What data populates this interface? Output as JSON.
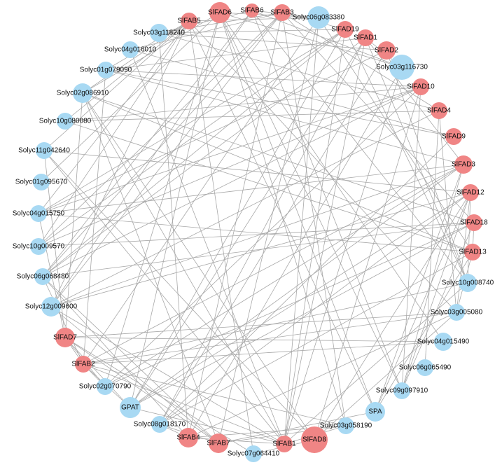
{
  "nodes": [
    {
      "label": "SlFAB5"
    },
    {
      "label": "SlFAD6"
    },
    {
      "label": "SlFAB6"
    },
    {
      "label": "SlFAB3"
    },
    {
      "label": "Solyc06g083380"
    },
    {
      "label": "SlFAD19"
    },
    {
      "label": "SlFAD1"
    },
    {
      "label": "SlFAD2"
    },
    {
      "label": "Solyc03g116730"
    },
    {
      "label": "SlFAD10"
    },
    {
      "label": "SlFAD4"
    },
    {
      "label": "SlFAD9"
    },
    {
      "label": "SlFAD3"
    },
    {
      "label": "SlFAD12"
    },
    {
      "label": "SlFAD18"
    },
    {
      "label": "SlFAD13"
    },
    {
      "label": "Solyc10g008740"
    },
    {
      "label": "Solyc03g005080"
    },
    {
      "label": "Solyc04g015490"
    },
    {
      "label": "Solyc06g065490"
    },
    {
      "label": "Solyc09g097910"
    },
    {
      "label": "SPA"
    },
    {
      "label": "Solyc03g058190"
    },
    {
      "label": "SlFAD8"
    },
    {
      "label": "SlFAB1"
    },
    {
      "label": "Solyc07g064410"
    },
    {
      "label": "SlFAB7"
    },
    {
      "label": "SlFAB4"
    },
    {
      "label": "Solyc08g018170"
    },
    {
      "label": "GPAT"
    },
    {
      "label": "Solyc02g070790"
    },
    {
      "label": "SlFAB2"
    },
    {
      "label": "SlFAD7"
    },
    {
      "label": "Solyc12g009600"
    },
    {
      "label": "Solyc06g068480"
    },
    {
      "label": "Solyc10g009570"
    },
    {
      "label": "Solyc04g015750"
    },
    {
      "label": "Solyc01g095670"
    },
    {
      "label": "Solyc11g042640"
    },
    {
      "label": "Solyc10g080080"
    },
    {
      "label": "Solyc02g086910"
    },
    {
      "label": "Solyc01g079090"
    },
    {
      "label": "Solyc04g016010"
    },
    {
      "label": "Solyc03g118240"
    }
  ]
}
